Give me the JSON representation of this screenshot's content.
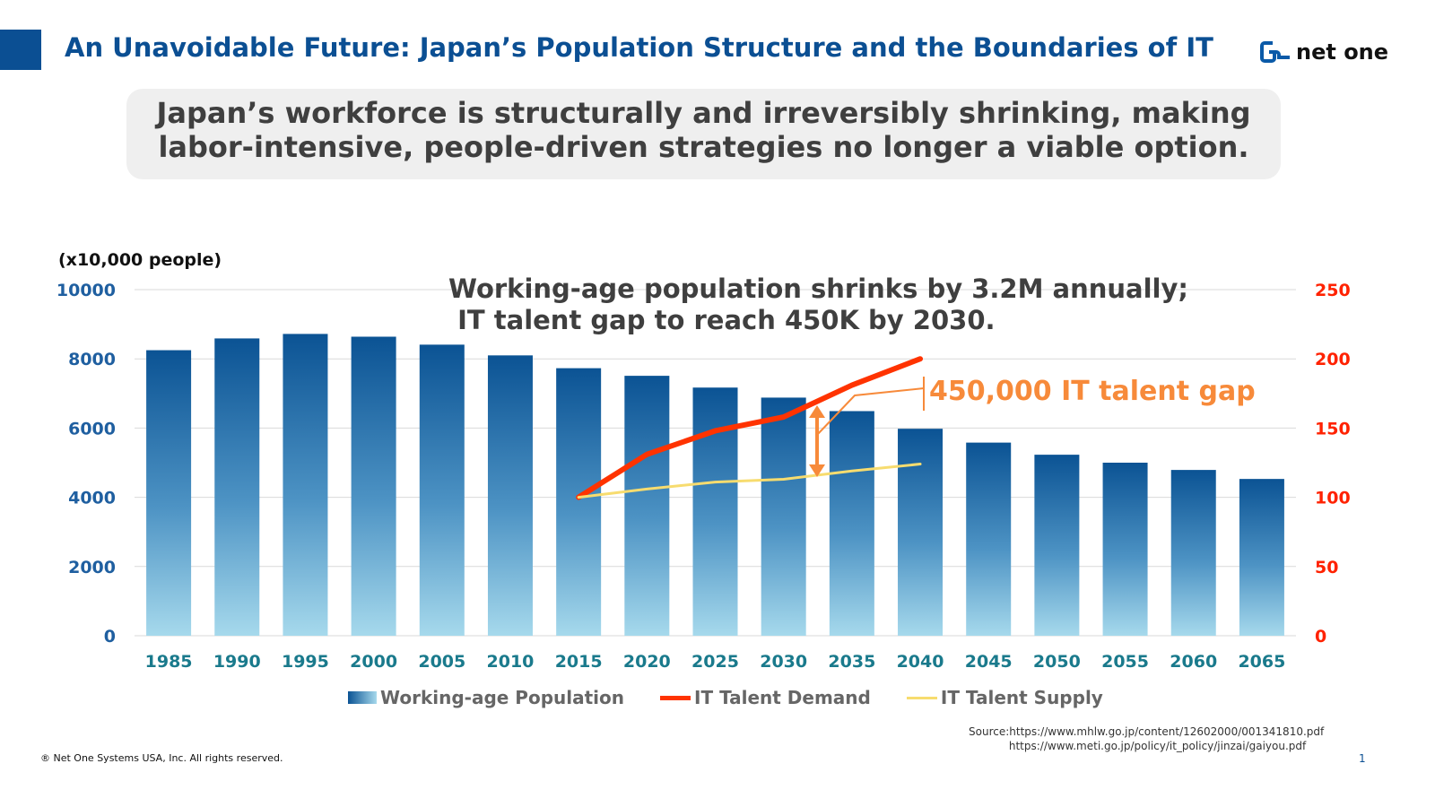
{
  "header": {
    "title": "An Unavoidable Future: Japan’s Population Structure and the Boundaries of IT",
    "logo_text": "net one"
  },
  "banner": {
    "line1": "Japan’s workforce is structurally and irreversibly shrinking, making",
    "line2": "labor-intensive, people-driven strategies no longer a viable option."
  },
  "chart_data": {
    "type": "bar",
    "unit_label": "(x10,000 people)",
    "annotation": "Working-age population shrinks by 3.2M annually;\n IT talent gap to reach 450K by 2030.",
    "gap_label": "450,000 IT talent gap",
    "categories": [
      "1985",
      "1990",
      "1995",
      "2000",
      "2005",
      "2010",
      "2015",
      "2020",
      "2025",
      "2030",
      "2035",
      "2040",
      "2045",
      "2050",
      "2055",
      "2060",
      "2065"
    ],
    "left_axis": {
      "ylim": [
        0,
        10000
      ],
      "ticks": [
        0,
        2000,
        4000,
        6000,
        8000,
        10000
      ]
    },
    "right_axis": {
      "ylim": [
        0,
        250
      ],
      "ticks": [
        0,
        50,
        100,
        150,
        200,
        250
      ]
    },
    "series": [
      {
        "name": "Working-age Population",
        "type": "bar",
        "axis": "left",
        "values": [
          8250,
          8590,
          8720,
          8640,
          8410,
          8100,
          7730,
          7510,
          7170,
          6880,
          6490,
          5980,
          5580,
          5230,
          5000,
          4790,
          4530
        ]
      },
      {
        "name": "IT Talent Demand",
        "type": "line",
        "axis": "right",
        "color": "#ff3300",
        "values": [
          null,
          null,
          null,
          null,
          null,
          null,
          100,
          131,
          148,
          158,
          181,
          200,
          null,
          null,
          null,
          null,
          null
        ]
      },
      {
        "name": "IT Talent Supply",
        "type": "line",
        "axis": "right",
        "color": "#f7dc6f",
        "values": [
          null,
          null,
          null,
          null,
          null,
          null,
          100,
          106,
          111,
          113,
          119,
          124,
          null,
          null,
          null,
          null,
          null
        ]
      }
    ]
  },
  "footer": {
    "source1": "Source:https://www.mhlw.go.jp/content/12602000/001341810.pdf",
    "source2": "https://www.meti.go.jp/policy/it_policy/jinzai/gaiyou.pdf",
    "copyright": "® Net One Systems USA, Inc. All rights reserved.",
    "page": "1"
  }
}
